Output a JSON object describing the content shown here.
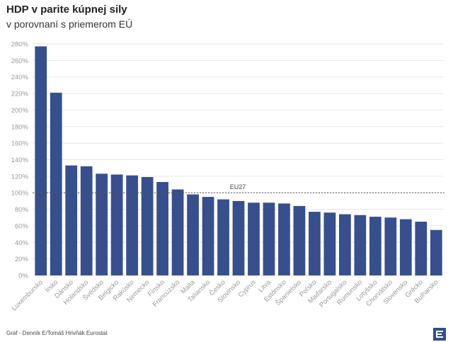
{
  "title": "HDP v parite kúpnej sily",
  "subtitle": "v porovnaní s priemerom EÚ",
  "footer": "Graf - Denník E/Tomáš Hrivňák Eurostat",
  "colors": {
    "bar": "#374f8c",
    "grid": "#e6e6e6",
    "axis_text": "#9a9a9a",
    "reference_line": "#555555",
    "logo": "#2f4f8f"
  },
  "icons": {
    "logo": "denník-e-logo"
  },
  "chart_data": {
    "type": "bar",
    "categories": [
      "Luxembursko",
      "Írsko",
      "Dánsko",
      "Holandsko",
      "Švédsko",
      "Belgicko",
      "Rakúsko",
      "Nemecko",
      "Fínsko",
      "Francúzsko",
      "Malta",
      "Taliansko",
      "Česko",
      "Slovinsko",
      "Cyprus",
      "Litva",
      "Estónsko",
      "Španielsko",
      "Poľsko",
      "Maďarsko",
      "Portugalsko",
      "Rumunsko",
      "Lotyšsko",
      "Chorvátsko",
      "Slovensko",
      "Grécko",
      "Bulharsko"
    ],
    "values": [
      277,
      221,
      133,
      132,
      123,
      122,
      121,
      119,
      113,
      104,
      98,
      95,
      92,
      90,
      88,
      88,
      87,
      84,
      77,
      76,
      74,
      73,
      71,
      70,
      68,
      65,
      55
    ],
    "ylim": [
      0,
      280
    ],
    "yticks": [
      0,
      20,
      40,
      60,
      80,
      100,
      120,
      140,
      160,
      180,
      200,
      220,
      240,
      260,
      280
    ],
    "ytick_labels": [
      "0%",
      "20%",
      "40%",
      "60%",
      "80%",
      "100%",
      "120%",
      "140%",
      "160%",
      "180%",
      "200%",
      "220%",
      "240%",
      "260%",
      "280%"
    ],
    "grid": true,
    "reference_line": {
      "value": 100,
      "label": "EU27"
    }
  }
}
